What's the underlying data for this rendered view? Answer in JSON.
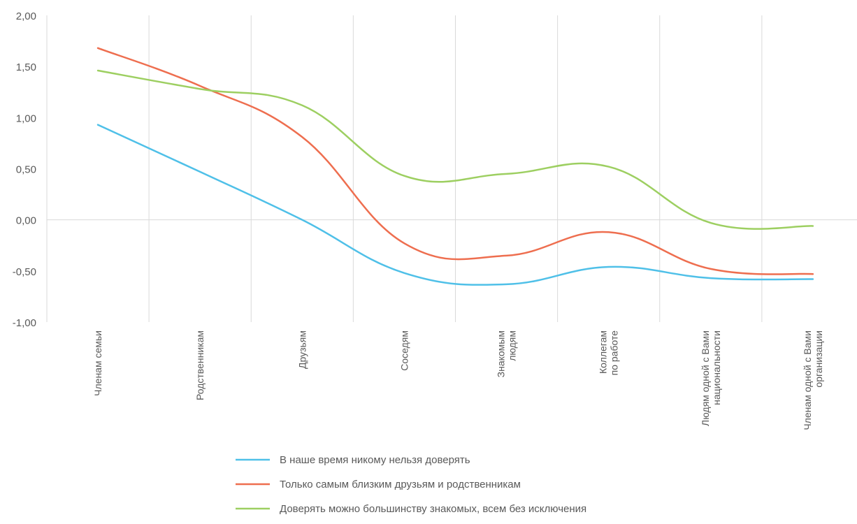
{
  "chart_data": {
    "type": "line",
    "smooth": true,
    "title": "",
    "xlabel": "",
    "ylabel": "",
    "ylim": [
      -1.0,
      2.0
    ],
    "ytick_step": 0.5,
    "ytick_labels": [
      "2,00",
      "1,50",
      "1,00",
      "0,50",
      "0,00",
      "-0,50",
      "-1,00"
    ],
    "grid": "vertical lines between categories",
    "legend_position": "bottom",
    "categories": [
      [
        "Членам семьи"
      ],
      [
        "Родственникам"
      ],
      [
        "Друзьям"
      ],
      [
        "Соседям"
      ],
      [
        "Знакомым",
        "людям"
      ],
      [
        "Коллегам",
        "по работе"
      ],
      [
        "Людям одной с Вами",
        "национальности"
      ],
      [
        "Членам одной с Вами",
        "организации"
      ]
    ],
    "series": [
      {
        "name": "В наше время никому нельзя доверять",
        "color": "#4FC0E8",
        "values": [
          0.93,
          0.47,
          0.0,
          -0.52,
          -0.63,
          -0.46,
          -0.57,
          -0.58
        ]
      },
      {
        "name": "Только самым близким друзьям и родственникам",
        "color": "#EE6E4F",
        "values": [
          1.68,
          1.31,
          0.81,
          -0.23,
          -0.35,
          -0.12,
          -0.48,
          -0.53
        ]
      },
      {
        "name": "Доверять можно большинству знакомых, всем без исключения",
        "color": "#9DCF61",
        "values": [
          1.46,
          1.28,
          1.12,
          0.43,
          0.45,
          0.52,
          -0.03,
          -0.06
        ]
      }
    ]
  }
}
